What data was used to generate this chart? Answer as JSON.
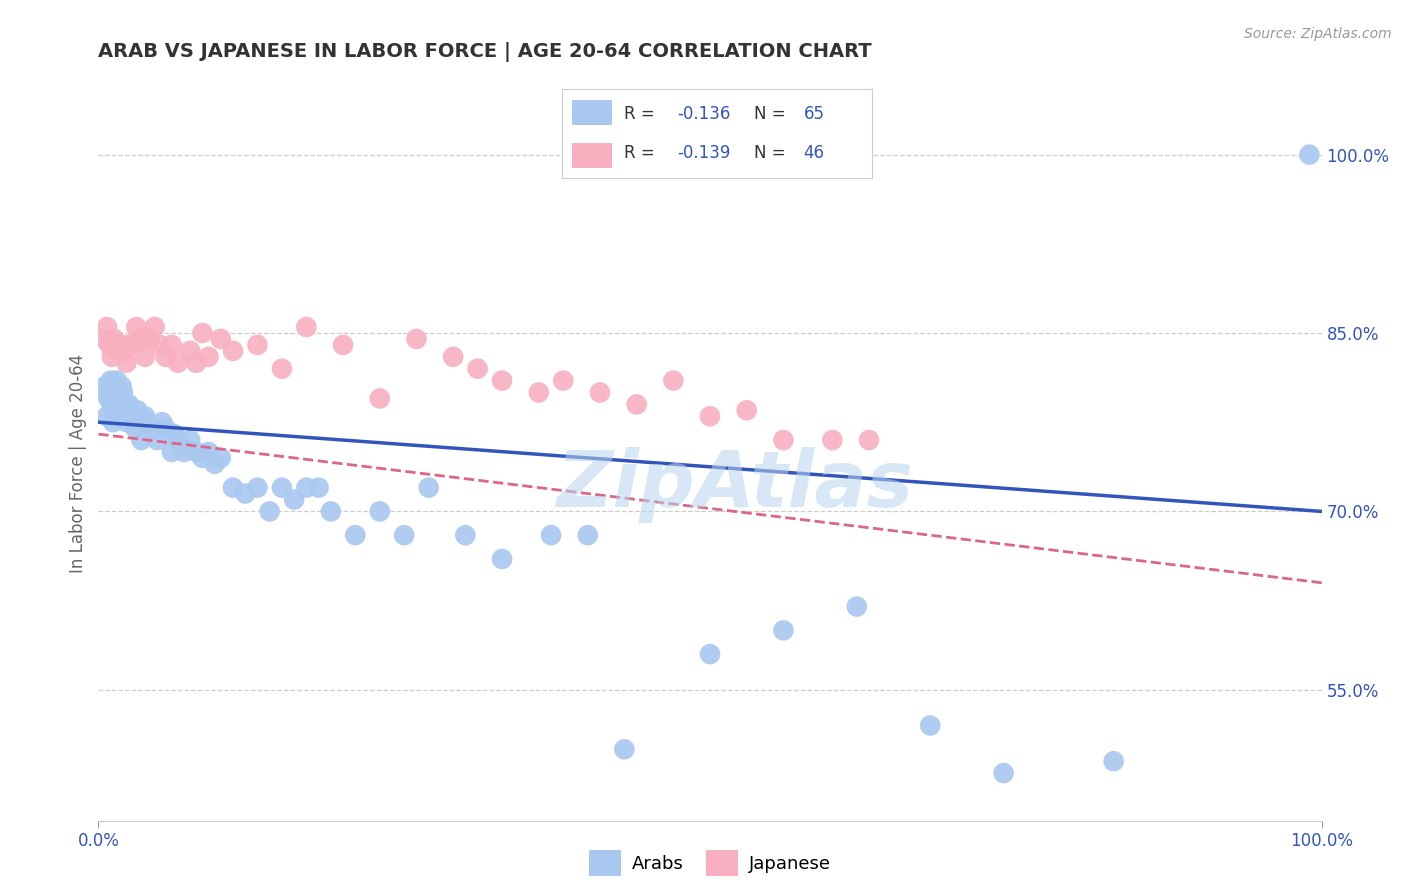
{
  "title": "ARAB VS JAPANESE IN LABOR FORCE | AGE 20-64 CORRELATION CHART",
  "source_text": "Source: ZipAtlas.com",
  "ylabel": "In Labor Force | Age 20-64",
  "xlim": [
    0.0,
    1.0
  ],
  "ylim": [
    0.44,
    1.04
  ],
  "yticks": [
    0.55,
    0.7,
    0.85,
    1.0
  ],
  "ytick_labels": [
    "55.0%",
    "70.0%",
    "85.0%",
    "100.0%"
  ],
  "xtick_labels": [
    "0.0%",
    "100.0%"
  ],
  "xticks": [
    0.0,
    1.0
  ],
  "arab_R": -0.136,
  "arab_N": 65,
  "japanese_R": -0.139,
  "japanese_N": 46,
  "blue_color": "#A8C8F0",
  "pink_color": "#F8B0C0",
  "blue_line_color": "#3355BB",
  "pink_line_color": "#DD6688",
  "background_color": "#FFFFFF",
  "grid_color": "#CCCCCC",
  "watermark": "ZipAtlas",
  "watermark_color": "#B8D4EE",
  "arab_x": [
    0.005,
    0.007,
    0.008,
    0.009,
    0.01,
    0.011,
    0.012,
    0.013,
    0.014,
    0.015,
    0.016,
    0.017,
    0.018,
    0.019,
    0.02,
    0.021,
    0.022,
    0.023,
    0.025,
    0.027,
    0.03,
    0.032,
    0.035,
    0.038,
    0.04,
    0.045,
    0.048,
    0.052,
    0.055,
    0.06,
    0.062,
    0.065,
    0.068,
    0.07,
    0.075,
    0.08,
    0.085,
    0.09,
    0.095,
    0.1,
    0.11,
    0.12,
    0.13,
    0.14,
    0.15,
    0.16,
    0.17,
    0.18,
    0.19,
    0.21,
    0.23,
    0.25,
    0.27,
    0.3,
    0.33,
    0.37,
    0.4,
    0.43,
    0.5,
    0.56,
    0.62,
    0.68,
    0.74,
    0.83,
    0.99
  ],
  "arab_y": [
    0.805,
    0.78,
    0.795,
    0.8,
    0.81,
    0.79,
    0.775,
    0.795,
    0.805,
    0.81,
    0.8,
    0.795,
    0.79,
    0.805,
    0.8,
    0.785,
    0.79,
    0.775,
    0.79,
    0.78,
    0.77,
    0.785,
    0.76,
    0.78,
    0.775,
    0.77,
    0.76,
    0.775,
    0.77,
    0.75,
    0.765,
    0.76,
    0.755,
    0.75,
    0.76,
    0.75,
    0.745,
    0.75,
    0.74,
    0.745,
    0.72,
    0.715,
    0.72,
    0.7,
    0.72,
    0.71,
    0.72,
    0.72,
    0.7,
    0.68,
    0.7,
    0.68,
    0.72,
    0.68,
    0.66,
    0.68,
    0.68,
    0.5,
    0.58,
    0.6,
    0.62,
    0.52,
    0.48,
    0.49,
    1.0
  ],
  "japanese_x": [
    0.005,
    0.007,
    0.009,
    0.011,
    0.013,
    0.015,
    0.017,
    0.019,
    0.021,
    0.023,
    0.025,
    0.028,
    0.031,
    0.034,
    0.038,
    0.042,
    0.046,
    0.05,
    0.055,
    0.06,
    0.065,
    0.075,
    0.08,
    0.085,
    0.09,
    0.1,
    0.11,
    0.13,
    0.15,
    0.17,
    0.2,
    0.23,
    0.26,
    0.29,
    0.31,
    0.33,
    0.36,
    0.38,
    0.41,
    0.44,
    0.47,
    0.5,
    0.53,
    0.56,
    0.6,
    0.63
  ],
  "japanese_y": [
    0.845,
    0.855,
    0.84,
    0.83,
    0.845,
    0.84,
    0.835,
    0.84,
    0.835,
    0.825,
    0.84,
    0.84,
    0.855,
    0.845,
    0.83,
    0.845,
    0.855,
    0.84,
    0.83,
    0.84,
    0.825,
    0.835,
    0.825,
    0.85,
    0.83,
    0.845,
    0.835,
    0.84,
    0.82,
    0.855,
    0.84,
    0.795,
    0.845,
    0.83,
    0.82,
    0.81,
    0.8,
    0.81,
    0.8,
    0.79,
    0.81,
    0.78,
    0.785,
    0.76,
    0.76,
    0.76
  ],
  "arab_line_x0": 0.0,
  "arab_line_y0": 0.775,
  "arab_line_x1": 1.0,
  "arab_line_y1": 0.7,
  "jpn_line_x0": 0.0,
  "jpn_line_y0": 0.765,
  "jpn_line_x1": 1.0,
  "jpn_line_y1": 0.64
}
